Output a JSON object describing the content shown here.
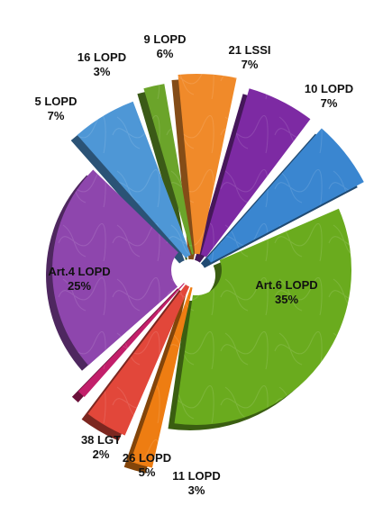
{
  "chart_data": {
    "type": "pie",
    "title": "",
    "slices": [
      {
        "name": "21 LSSI",
        "value": 7,
        "label": "7%",
        "color": "#7d2aa3"
      },
      {
        "name": "10 LOPD",
        "value": 7,
        "label": "7%",
        "color": "#3a86d0"
      },
      {
        "name": "Art.6 LOPD",
        "value": 35,
        "label": "35%",
        "color": "#6aab1e"
      },
      {
        "name": "11 LOPD",
        "value": 3,
        "label": "3%",
        "color": "#ee7d12"
      },
      {
        "name": "26 LOPD",
        "value": 5,
        "label": "5%",
        "color": "#e2473a"
      },
      {
        "name": "38 LGT",
        "value": 2,
        "label": "2%",
        "color": "#c21f6a"
      },
      {
        "name": "Art.4 LOPD",
        "value": 25,
        "label": "25%",
        "color": "#8e46ad"
      },
      {
        "name": "5 LOPD",
        "value": 7,
        "label": "7%",
        "color": "#4e97d6"
      },
      {
        "name": "16 LOPD",
        "value": 3,
        "label": "3%",
        "color": "#6ba42a"
      },
      {
        "name": "9 LOPD",
        "value": 6,
        "label": "6%",
        "color": "#f08a2a"
      }
    ],
    "legend": "none",
    "exploded": true,
    "three_d": true
  }
}
